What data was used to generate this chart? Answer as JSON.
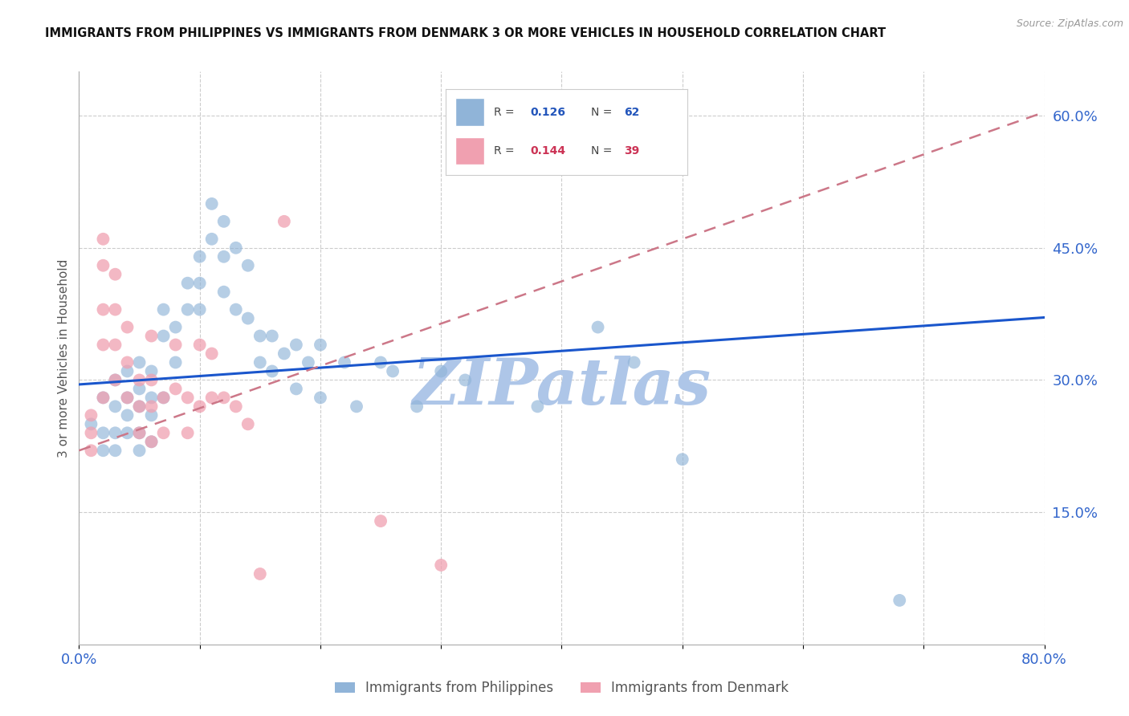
{
  "title": "IMMIGRANTS FROM PHILIPPINES VS IMMIGRANTS FROM DENMARK 3 OR MORE VEHICLES IN HOUSEHOLD CORRELATION CHART",
  "source": "Source: ZipAtlas.com",
  "ylabel": "3 or more Vehicles in Household",
  "x_min": 0.0,
  "x_max": 0.8,
  "y_min": 0.0,
  "y_max": 0.65,
  "y_ticks_right": [
    0.15,
    0.3,
    0.45,
    0.6
  ],
  "y_tick_labels_right": [
    "15.0%",
    "30.0%",
    "45.0%",
    "60.0%"
  ],
  "grid_color": "#cccccc",
  "background_color": "#ffffff",
  "watermark": "ZIPatlas",
  "watermark_color": "#aec6e8",
  "legend_label1": "Immigrants from Philippines",
  "legend_label2": "Immigrants from Denmark",
  "blue_color": "#90b4d8",
  "pink_color": "#f0a0b0",
  "line_blue": "#1a56cc",
  "line_pink": "#cc7788",
  "philippines_x": [
    0.01,
    0.02,
    0.02,
    0.02,
    0.03,
    0.03,
    0.03,
    0.03,
    0.04,
    0.04,
    0.04,
    0.04,
    0.05,
    0.05,
    0.05,
    0.05,
    0.05,
    0.06,
    0.06,
    0.06,
    0.06,
    0.07,
    0.07,
    0.07,
    0.08,
    0.08,
    0.09,
    0.09,
    0.1,
    0.1,
    0.1,
    0.11,
    0.11,
    0.12,
    0.12,
    0.12,
    0.13,
    0.13,
    0.14,
    0.14,
    0.15,
    0.15,
    0.16,
    0.16,
    0.17,
    0.18,
    0.18,
    0.19,
    0.2,
    0.2,
    0.22,
    0.23,
    0.25,
    0.26,
    0.28,
    0.3,
    0.32,
    0.38,
    0.43,
    0.46,
    0.5,
    0.68
  ],
  "philippines_y": [
    0.25,
    0.28,
    0.24,
    0.22,
    0.3,
    0.27,
    0.24,
    0.22,
    0.31,
    0.28,
    0.26,
    0.24,
    0.32,
    0.29,
    0.27,
    0.24,
    0.22,
    0.31,
    0.28,
    0.26,
    0.23,
    0.38,
    0.35,
    0.28,
    0.36,
    0.32,
    0.41,
    0.38,
    0.44,
    0.41,
    0.38,
    0.5,
    0.46,
    0.48,
    0.44,
    0.4,
    0.45,
    0.38,
    0.43,
    0.37,
    0.35,
    0.32,
    0.35,
    0.31,
    0.33,
    0.34,
    0.29,
    0.32,
    0.34,
    0.28,
    0.32,
    0.27,
    0.32,
    0.31,
    0.27,
    0.31,
    0.3,
    0.27,
    0.36,
    0.32,
    0.21,
    0.05
  ],
  "denmark_x": [
    0.01,
    0.01,
    0.01,
    0.02,
    0.02,
    0.02,
    0.02,
    0.02,
    0.03,
    0.03,
    0.03,
    0.03,
    0.04,
    0.04,
    0.04,
    0.05,
    0.05,
    0.05,
    0.06,
    0.06,
    0.06,
    0.06,
    0.07,
    0.07,
    0.08,
    0.08,
    0.09,
    0.09,
    0.1,
    0.1,
    0.11,
    0.11,
    0.12,
    0.13,
    0.14,
    0.15,
    0.17,
    0.25,
    0.3
  ],
  "denmark_y": [
    0.26,
    0.24,
    0.22,
    0.46,
    0.43,
    0.38,
    0.34,
    0.28,
    0.42,
    0.38,
    0.34,
    0.3,
    0.36,
    0.32,
    0.28,
    0.3,
    0.27,
    0.24,
    0.35,
    0.3,
    0.27,
    0.23,
    0.28,
    0.24,
    0.34,
    0.29,
    0.28,
    0.24,
    0.34,
    0.27,
    0.33,
    0.28,
    0.28,
    0.27,
    0.25,
    0.08,
    0.48,
    0.14,
    0.09
  ],
  "phi_intercept": 0.295,
  "phi_slope": 0.095,
  "den_intercept": 0.22,
  "den_slope": 0.48
}
